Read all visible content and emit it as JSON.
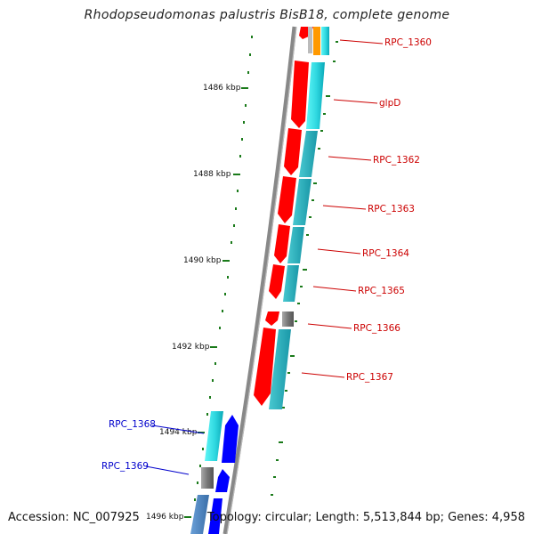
{
  "title": "Rhodopseudomonas palustris BisB18, complete genome",
  "footer": {
    "accession": "Accession: NC_007925",
    "summary": "Topology: circular; Length: 5,513,844 bp; Genes: 4,958"
  },
  "colors": {
    "forward_cds": "#ff0000",
    "reverse_cds": "#0000ff",
    "backbone": "#888888",
    "tick": "#1a7a1a",
    "label_forward": "#cc0000",
    "label_reverse": "#0000cc"
  },
  "ticks": [
    "1486 kbp",
    "1488 kbp",
    "1490 kbp",
    "1492 kbp",
    "1494 kbp",
    "1496 kbp"
  ],
  "genes": [
    {
      "name": "RPC_1360",
      "strand": "forward"
    },
    {
      "name": "glpD",
      "strand": "forward"
    },
    {
      "name": "RPC_1362",
      "strand": "forward"
    },
    {
      "name": "RPC_1363",
      "strand": "forward"
    },
    {
      "name": "RPC_1364",
      "strand": "forward"
    },
    {
      "name": "RPC_1365",
      "strand": "forward"
    },
    {
      "name": "RPC_1366",
      "strand": "forward"
    },
    {
      "name": "RPC_1367",
      "strand": "forward"
    },
    {
      "name": "RPC_1368",
      "strand": "reverse"
    },
    {
      "name": "RPC_1369",
      "strand": "reverse"
    }
  ]
}
